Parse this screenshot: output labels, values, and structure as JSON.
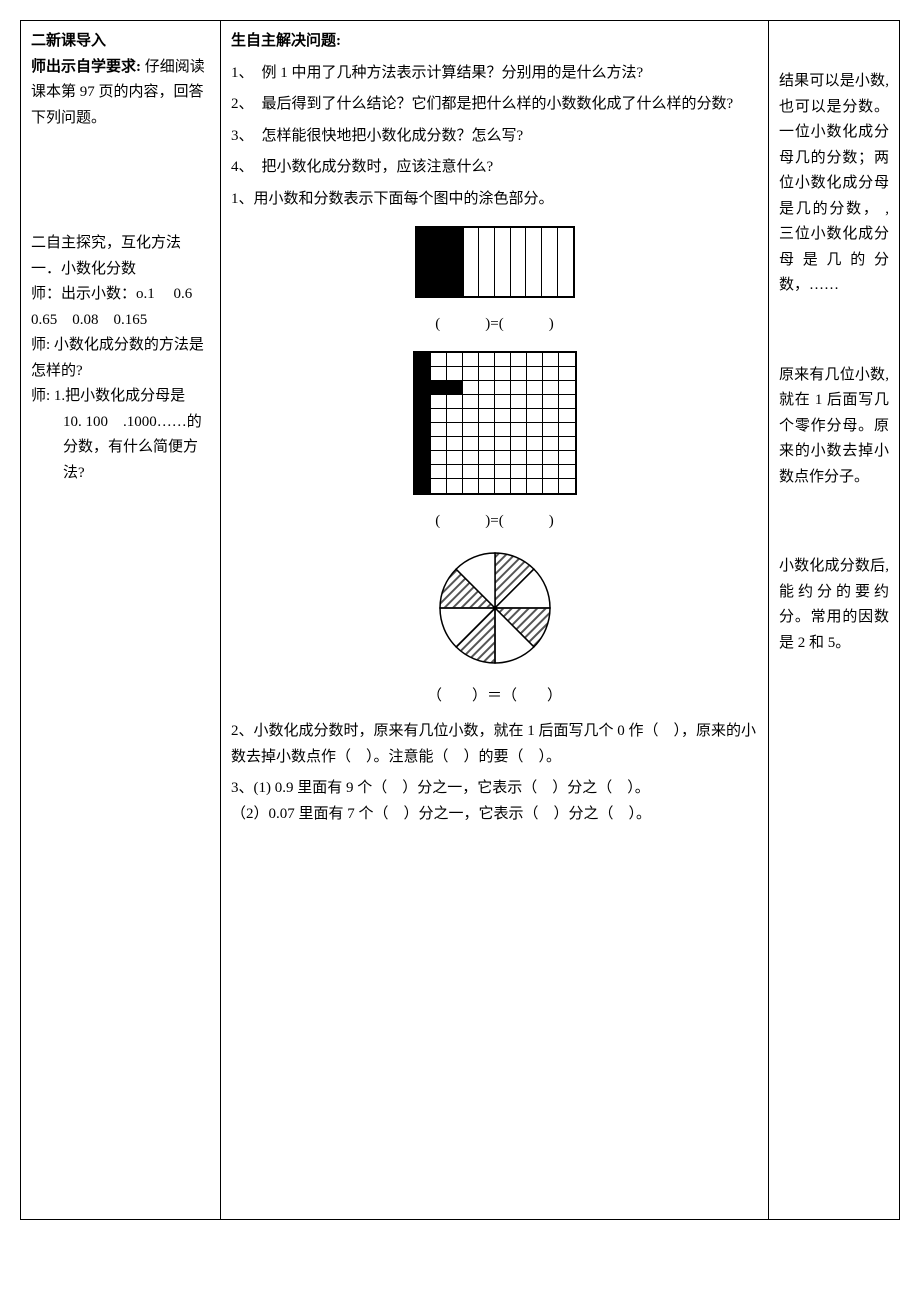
{
  "col_l": {
    "h1": "二新课导入",
    "h2a": "师出示自学要求:",
    "h2b": "仔细阅读课本第 97 页的内容，回答下列问题。",
    "sec2_title": "二自主探究，互化方法",
    "sec2_sub1": "一．小数化分数",
    "sec2_line1": "师：出示小数：o.1　 0.6　0.65　0.08　0.165",
    "sec2_line2": "师: 小数化成分数的方法是怎样的?",
    "sec2_q": "师: 1.把小数化成分母是　10. 100　.1000……的分数，有什么简便方法?"
  },
  "col_m": {
    "title": "生自主解决问题:",
    "items": [
      {
        "num": "1、",
        "txt": "例 1 中用了几种方法表示计算结果？分别用的是什么方法?"
      },
      {
        "num": "2、",
        "txt": "最后得到了什么结论？它们都是把什么样的小数数化成了什么样的分数?"
      },
      {
        "num": "3、",
        "txt": "怎样能很快地把小数化成分数？怎么写?"
      },
      {
        "num": "4、",
        "txt": "把小数化成分数时，应该注意什么?"
      }
    ],
    "ex1": "1、用小数和分数表示下面每个图中的涂色部分。",
    "cap": "(　　　)=(　　　)",
    "cap3": "（　　）＝（　　）",
    "ex2": "2、小数化成分数时，原来有几位小数，就在 1 后面写几个 0 作（　），原来的小数去掉小数点作（　）。注意能（　）的要（　）。",
    "ex3a": "3、(1) 0.9 里面有 9 个（　）分之一，它表示（　）分之（　）。",
    "ex3b": "（2）0.07 里面有 7 个（　）分之一，它表示（　）分之（　）。"
  },
  "col_r": {
    "p1": "结果可以是小数,也可以是分数。一位小数化成分母几的分数；两位小数化成分母是几的分数， ,三位小数化成分母是几的分数，……",
    "p2": "原来有几位小数,就在 1 后面写几个零作分母。原来的小数去掉小数点作分子。",
    "p3": "小数化成分数后,能约分的要约分。常用的因数是 2 和 5。"
  },
  "figures": {
    "tenstrip": {
      "total": 10,
      "filled": 3,
      "filled_color": "#000000",
      "border_color": "#000000"
    },
    "grid": {
      "rows": 10,
      "cols": 10,
      "fill_pattern": "first_col_all_plus_row2_cols_2_3",
      "filled_color": "#000000"
    },
    "pie": {
      "slices": 8,
      "shaded": [
        0,
        2,
        4,
        6
      ],
      "shade_style": "diagonal-hatch",
      "r": 55,
      "colors": {
        "stroke": "#000000",
        "bg": "#ffffff",
        "hatch": "#555555"
      }
    }
  }
}
